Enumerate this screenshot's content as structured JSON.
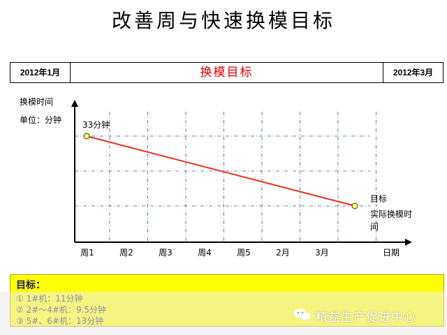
{
  "page": {
    "title": "改善周与快速换模目标"
  },
  "header": {
    "left": "2012年1月",
    "center": "换模目标",
    "right": "2012年3月"
  },
  "axis": {
    "ylabel_line1": "换模时间",
    "ylabel_line2": "单位：分钟"
  },
  "chart_data": {
    "type": "line",
    "categories": [
      "周1",
      "周2",
      "周3",
      "周4",
      "周5",
      "2月",
      "3月"
    ],
    "xlabel": "日期",
    "ylabel": "换模时间",
    "unit": "单位：分钟",
    "series": [
      {
        "values_start": {
          "x": "周1",
          "y": 33,
          "label": "33分钟"
        },
        "values_end": {
          "x": "3月",
          "y": 11,
          "label": "目标"
        }
      }
    ],
    "end_annotation": [
      "目标",
      "实际换模时间"
    ],
    "end_annotation_note": "实际换模时间",
    "grid": true,
    "line_color": "#e8311f",
    "marker_color": "#ffff66"
  },
  "goals": {
    "title": "目标：",
    "items": [
      {
        "num": "①",
        "text": "1#机：11分钟"
      },
      {
        "num": "②",
        "text": "2#～4#机：9.5分钟"
      },
      {
        "num": "③",
        "text": "5#、6#机：13分钟"
      }
    ]
  },
  "watermark": {
    "text": "精益生产促进中心"
  }
}
